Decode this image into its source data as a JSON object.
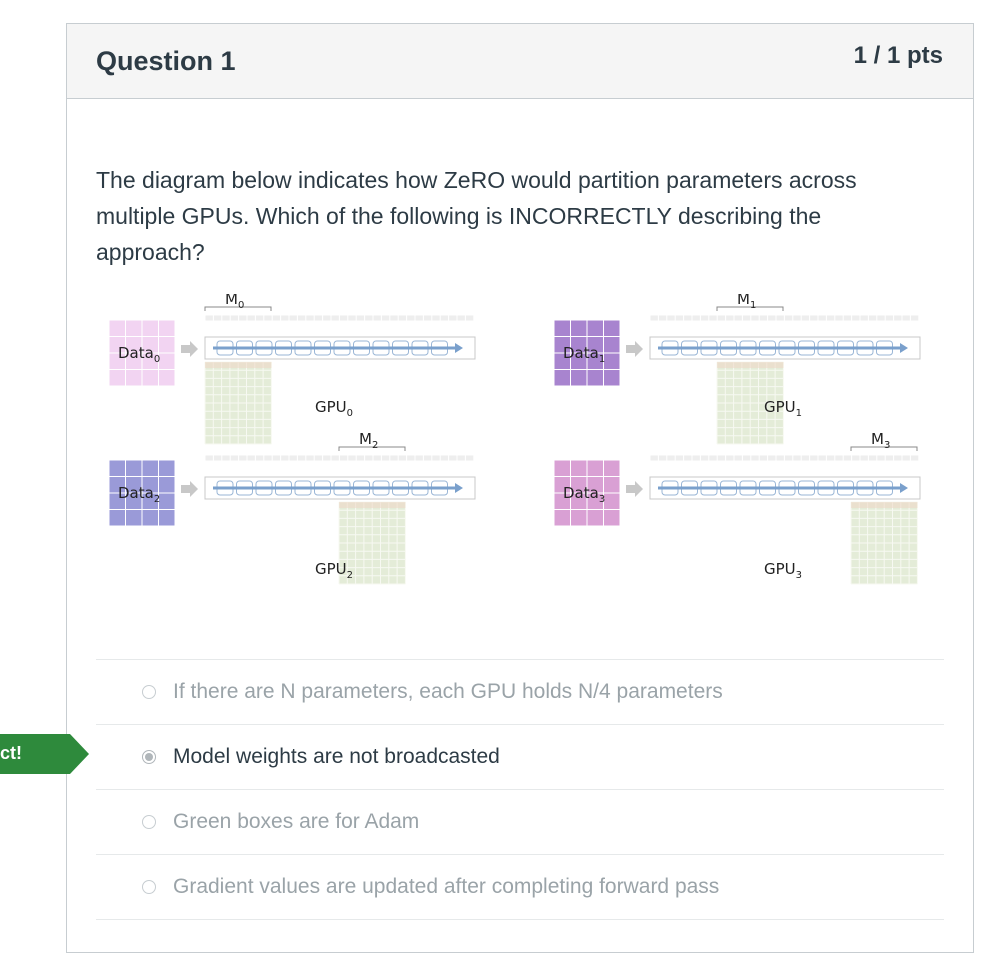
{
  "question": {
    "title": "Question 1",
    "points": "1 / 1 pts",
    "text": "The diagram below indicates how ZeRO would partition parameters across multiple GPUs. Which of the following is INCORRECTLY describing the approach?"
  },
  "diagram": {
    "panels": [
      {
        "data_label": "Data",
        "data_sub": "0",
        "model_label": "M",
        "model_sub": "0",
        "gpu_label": "GPU",
        "gpu_sub": "0",
        "data_color": "#f2d4f2"
      },
      {
        "data_label": "Data",
        "data_sub": "1",
        "model_label": "M",
        "model_sub": "1",
        "gpu_label": "GPU",
        "gpu_sub": "1",
        "data_color": "#a884cf"
      },
      {
        "data_label": "Data",
        "data_sub": "2",
        "model_label": "M",
        "model_sub": "2",
        "gpu_label": "GPU",
        "gpu_sub": "2",
        "data_color": "#9a9ad8"
      },
      {
        "data_label": "Data",
        "data_sub": "3",
        "model_label": "M",
        "model_sub": "3",
        "gpu_label": "GPU",
        "gpu_sub": "3",
        "data_color": "#d9a0d4"
      }
    ]
  },
  "answers": [
    {
      "label": "If there are N parameters, each GPU holds N/4 parameters",
      "selected": false
    },
    {
      "label": "Model weights are not broadcasted",
      "selected": true
    },
    {
      "label": "Green boxes are for Adam",
      "selected": false
    },
    {
      "label": "Gradient values are updated after completing forward pass",
      "selected": false
    }
  ],
  "feedback": {
    "badge_text": "ct!",
    "color": "#2e8a3c"
  }
}
